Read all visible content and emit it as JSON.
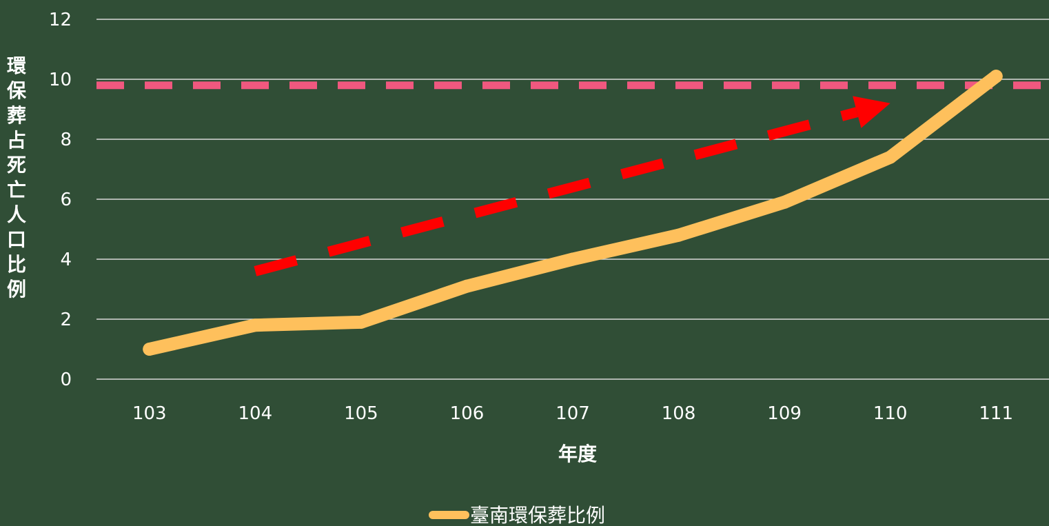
{
  "chart_data": {
    "type": "line",
    "title": "",
    "xlabel": "年度",
    "ylabel": "環保葬占死亡人口比例",
    "categories": [
      "103",
      "104",
      "105",
      "106",
      "107",
      "108",
      "109",
      "110",
      "111"
    ],
    "series": [
      {
        "name": "臺南環保葬比例",
        "values": [
          1.0,
          1.8,
          1.9,
          3.1,
          4.0,
          4.8,
          5.9,
          7.4,
          10.1
        ],
        "color": "#fec05c"
      }
    ],
    "ylim": [
      0,
      12
    ],
    "yticks": [
      0,
      2,
      4,
      6,
      8,
      10,
      12
    ],
    "grid": true,
    "legend_position": "bottom",
    "annotations": {
      "reference_line": {
        "y": 9.8,
        "color": "#f0587f",
        "style": "dashed"
      },
      "trend_arrow": {
        "from": {
          "x": "104",
          "y": 3.6
        },
        "to": {
          "x": "110",
          "y": 9.2
        },
        "color": "#ff0000",
        "style": "dashed"
      }
    },
    "colors": {
      "background": "#304e36",
      "grid": "#d9d9d9",
      "text": "#ffffff"
    }
  }
}
